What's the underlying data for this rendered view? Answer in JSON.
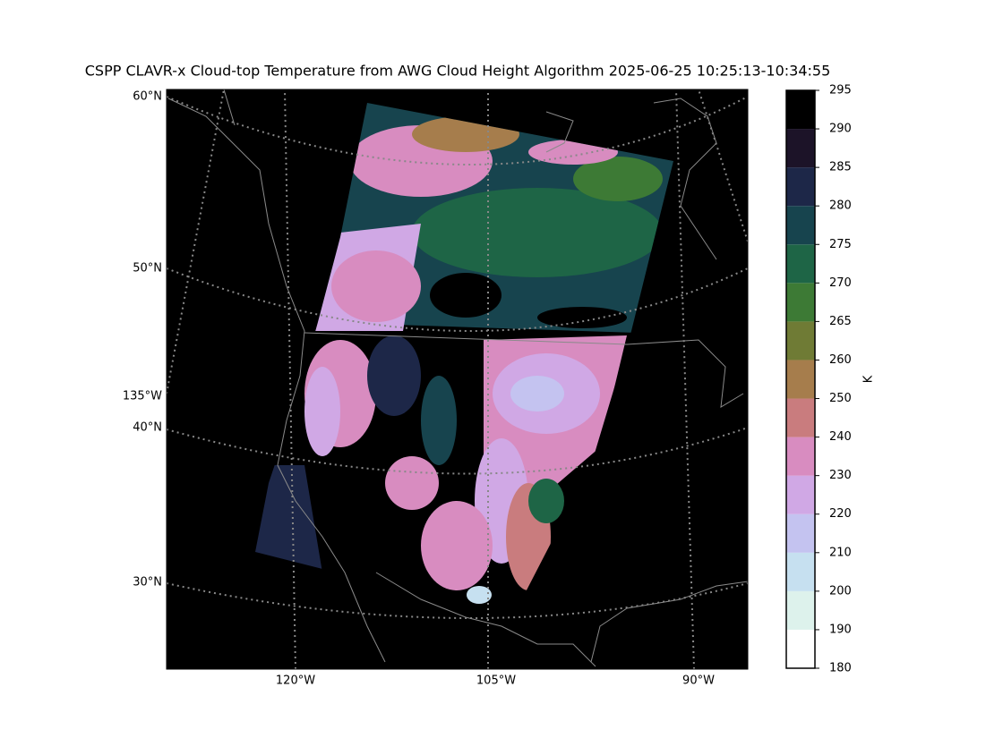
{
  "title": "CSPP CLAVR-x Cloud-top Temperature from AWG Cloud Height Algorithm 2025-06-25 10:25:13-10:34:55",
  "map": {
    "lat_labels": [
      "60°N",
      "50°N",
      "135°W",
      "40°N",
      "30°N"
    ],
    "lon_labels": [
      "120°W",
      "105°W",
      "90°W"
    ]
  },
  "colorbar": {
    "label": "K",
    "ticks": [
      180,
      190,
      200,
      210,
      220,
      230,
      240,
      250,
      260,
      265,
      270,
      275,
      280,
      285,
      290,
      295
    ],
    "colors": [
      "#ffffff",
      "#ddf2ec",
      "#c6e0f0",
      "#c4c3f0",
      "#d0a8e5",
      "#d88cc0",
      "#c97c7e",
      "#a67d4c",
      "#6f7b35",
      "#3d7a35",
      "#1e6546",
      "#17444e",
      "#1d2748",
      "#1c1328",
      "#000000"
    ]
  }
}
